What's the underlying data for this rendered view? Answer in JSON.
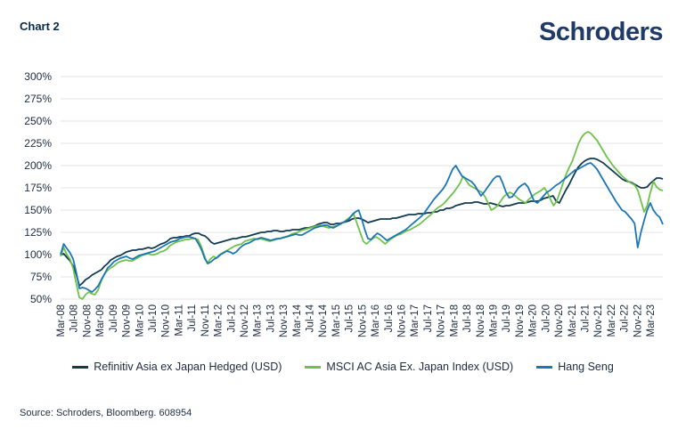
{
  "header": {
    "chart_label": "Chart 2",
    "brand": "Schroders"
  },
  "source": "Source: Schroders, Bloomberg. 608954",
  "chart_data": {
    "type": "line",
    "ylim": [
      50,
      300
    ],
    "yticks": [
      50,
      75,
      100,
      125,
      150,
      175,
      200,
      225,
      250,
      275,
      300
    ],
    "ytick_labels": [
      "50%",
      "75%",
      "100%",
      "125%",
      "150%",
      "175%",
      "200%",
      "225%",
      "250%",
      "275%",
      "300%"
    ],
    "grid": true,
    "legend_position": "bottom",
    "x_tick_labels": [
      "Mar-08",
      "Jul-08",
      "Nov-08",
      "Mar-09",
      "Jul-09",
      "Nov-09",
      "Mar-10",
      "Jul-10",
      "Nov-10",
      "Mar-11",
      "Jul-11",
      "Nov-11",
      "Mar-12",
      "Jul-12",
      "Nov-12",
      "Mar-13",
      "Jul-13",
      "Nov-13",
      "Mar-14",
      "Jul-14",
      "Nov-14",
      "Mar-15",
      "Jul-15",
      "Nov-15",
      "Mar-16",
      "Jul-16",
      "Nov-16",
      "Mar-17",
      "Jul-17",
      "Nov-17",
      "Mar-18",
      "Jul-18",
      "Nov-18",
      "Mar-19",
      "Jul-19",
      "Nov-19",
      "Mar-20",
      "Jul-20",
      "Nov-20",
      "Mar-21",
      "Jul-21",
      "Nov-21",
      "Mar-22",
      "Jul-22",
      "Nov-22",
      "Mar-23"
    ],
    "x_points_per_label": 4,
    "series": [
      {
        "name": "Refinitiv Asia ex Japan Hedged (USD)",
        "color": "#123b52",
        "values": [
          100,
          101,
          97,
          93,
          87,
          78,
          65,
          68,
          72,
          74,
          77,
          79,
          81,
          83,
          87,
          90,
          94,
          96,
          98,
          99,
          101,
          103,
          104,
          105,
          105,
          106,
          106,
          107,
          108,
          107,
          108,
          110,
          112,
          113,
          115,
          118,
          119,
          119,
          120,
          120,
          121,
          121,
          123,
          124,
          124,
          122,
          121,
          118,
          114,
          112,
          113,
          114,
          115,
          116,
          117,
          118,
          118,
          119,
          120,
          120,
          121,
          122,
          123,
          124,
          125,
          125,
          126,
          126,
          127,
          127,
          126,
          126,
          127,
          127,
          128,
          128,
          128,
          129,
          130,
          130,
          131,
          132,
          134,
          135,
          136,
          136,
          134,
          134,
          135,
          135,
          136,
          137,
          138,
          140,
          141,
          141,
          140,
          138,
          136,
          137,
          138,
          139,
          140,
          140,
          140,
          140,
          141,
          141,
          142,
          143,
          144,
          145,
          145,
          145,
          146,
          146,
          146,
          147,
          147,
          148,
          148,
          150,
          150,
          152,
          152,
          153,
          155,
          156,
          157,
          158,
          158,
          158,
          159,
          159,
          158,
          157,
          157,
          158,
          157,
          156,
          155,
          154,
          155,
          155,
          156,
          157,
          158,
          158,
          158,
          159,
          160,
          160,
          160,
          161,
          163,
          164,
          165,
          166,
          160,
          158,
          165,
          172,
          178,
          185,
          192,
          198,
          202,
          205,
          207,
          208,
          208,
          207,
          205,
          203,
          200,
          197,
          194,
          191,
          188,
          185,
          183,
          182,
          181,
          179,
          177,
          175,
          175,
          176,
          180,
          183,
          186,
          186,
          185
        ]
      },
      {
        "name": "MSCI AC Asia Ex. Japan Index (USD)",
        "color": "#6cc24a",
        "values": [
          98,
          108,
          100,
          95,
          85,
          68,
          52,
          50,
          55,
          58,
          56,
          55,
          60,
          70,
          78,
          82,
          85,
          87,
          90,
          92,
          93,
          94,
          93,
          93,
          95,
          97,
          99,
          100,
          101,
          100,
          100,
          101,
          103,
          104,
          106,
          110,
          112,
          114,
          115,
          116,
          117,
          117,
          118,
          118,
          117,
          110,
          100,
          90,
          95,
          98,
          96,
          100,
          102,
          104,
          106,
          108,
          110,
          111,
          112,
          115,
          116,
          117,
          118,
          117,
          118,
          117,
          116,
          115,
          116,
          117,
          118,
          119,
          120,
          121,
          123,
          124,
          125,
          127,
          128,
          129,
          130,
          131,
          132,
          133,
          132,
          131,
          130,
          131,
          132,
          133,
          135,
          137,
          140,
          143,
          145,
          135,
          125,
          115,
          112,
          115,
          118,
          120,
          118,
          115,
          112,
          115,
          118,
          120,
          122,
          123,
          125,
          127,
          128,
          130,
          132,
          134,
          137,
          140,
          143,
          146,
          150,
          153,
          155,
          158,
          162,
          166,
          170,
          175,
          180,
          188,
          183,
          178,
          176,
          174,
          172,
          170,
          165,
          158,
          150,
          152,
          155,
          160,
          165,
          168,
          170,
          168,
          165,
          162,
          160,
          158,
          162,
          165,
          168,
          170,
          172,
          175,
          170,
          162,
          155,
          160,
          170,
          180,
          190,
          198,
          205,
          215,
          225,
          232,
          236,
          238,
          236,
          232,
          228,
          222,
          216,
          210,
          205,
          200,
          196,
          192,
          188,
          185,
          182,
          180,
          178,
          172,
          160,
          148,
          155,
          170,
          182,
          176,
          173,
          172
        ]
      },
      {
        "name": "Hang Seng",
        "color": "#1b76b8",
        "values": [
          100,
          112,
          107,
          102,
          95,
          80,
          62,
          63,
          62,
          60,
          58,
          61,
          65,
          72,
          78,
          85,
          88,
          92,
          94,
          96,
          97,
          98,
          96,
          95,
          97,
          99,
          100,
          101,
          102,
          103,
          104,
          106,
          108,
          110,
          112,
          114,
          115,
          116,
          118,
          119,
          120,
          120,
          119,
          118,
          112,
          105,
          95,
          90,
          92,
          95,
          97,
          100,
          102,
          104,
          103,
          101,
          103,
          107,
          110,
          112,
          113,
          115,
          117,
          118,
          119,
          118,
          117,
          116,
          117,
          118,
          118,
          119,
          120,
          121,
          122,
          123,
          122,
          122,
          124,
          126,
          128,
          130,
          131,
          132,
          133,
          133,
          131,
          130,
          132,
          134,
          136,
          138,
          140,
          145,
          148,
          150,
          140,
          128,
          118,
          117,
          121,
          124,
          122,
          119,
          116,
          118,
          120,
          122,
          124,
          126,
          128,
          131,
          134,
          137,
          140,
          143,
          147,
          152,
          157,
          162,
          166,
          170,
          174,
          180,
          188,
          196,
          200,
          194,
          188,
          186,
          184,
          182,
          178,
          172,
          166,
          170,
          175,
          180,
          185,
          188,
          188,
          180,
          170,
          164,
          165,
          170,
          175,
          178,
          180,
          176,
          168,
          160,
          158,
          162,
          166,
          170,
          172,
          175,
          178,
          180,
          183,
          186,
          189,
          192,
          195,
          196,
          198,
          200,
          202,
          203,
          200,
          196,
          190,
          184,
          178,
          172,
          166,
          160,
          155,
          150,
          148,
          144,
          140,
          135,
          108,
          125,
          138,
          150,
          158,
          150,
          145,
          142,
          134
        ]
      }
    ]
  }
}
